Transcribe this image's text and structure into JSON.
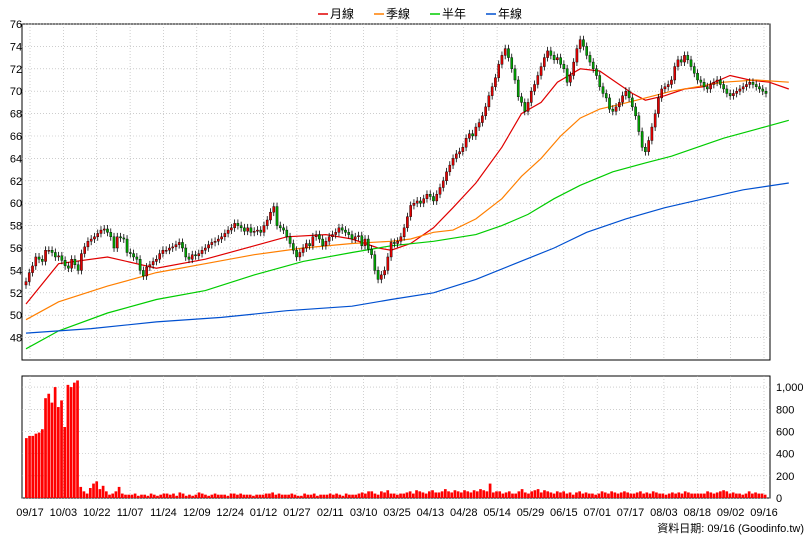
{
  "chart_data": {
    "type": "candlestick",
    "legend": [
      {
        "name": "月線",
        "color": "#e00000"
      },
      {
        "name": "季線",
        "color": "#ff7f00"
      },
      {
        "name": "半年",
        "color": "#00cc00"
      },
      {
        "name": "年線",
        "color": "#0050d0"
      }
    ],
    "price_axis": {
      "min": 46,
      "max": 76,
      "ticks": [
        48,
        50,
        52,
        54,
        56,
        58,
        60,
        62,
        64,
        66,
        68,
        70,
        72,
        74,
        76
      ]
    },
    "volume_axis": {
      "min": 0,
      "max": 1100,
      "ticks": [
        0,
        200,
        400,
        600,
        800,
        "1,000"
      ]
    },
    "x_labels": [
      "09/17",
      "10/03",
      "10/22",
      "11/07",
      "11/24",
      "12/09",
      "12/24",
      "01/12",
      "01/27",
      "02/11",
      "03/10",
      "03/25",
      "04/13",
      "04/28",
      "05/14",
      "05/29",
      "06/15",
      "07/01",
      "07/17",
      "08/03",
      "08/18",
      "09/02",
      "09/16"
    ],
    "closes": [
      53.0,
      53.8,
      54.4,
      55.2,
      55.0,
      54.8,
      55.8,
      55.8,
      55.6,
      55.2,
      55.3,
      54.9,
      54.4,
      54.2,
      55.0,
      54.5,
      54.0,
      55.5,
      56.1,
      56.6,
      56.8,
      57.0,
      57.3,
      57.6,
      57.7,
      57.4,
      57.0,
      56.0,
      57.0,
      56.9,
      56.8,
      55.6,
      55.5,
      55.2,
      55.0,
      54.0,
      53.5,
      54.3,
      54.5,
      54.8,
      55.0,
      55.5,
      55.8,
      55.8,
      56.0,
      56.1,
      56.3,
      56.5,
      56.0,
      55.2,
      55.0,
      55.4,
      55.3,
      55.5,
      55.8,
      56.0,
      56.3,
      56.5,
      56.6,
      56.8,
      57.0,
      57.3,
      57.6,
      57.8,
      58.2,
      58.0,
      57.8,
      57.5,
      57.8,
      57.4,
      57.5,
      57.6,
      57.4,
      58.0,
      58.5,
      59.2,
      59.7,
      58.0,
      57.8,
      57.6,
      57.0,
      56.4,
      55.8,
      55.2,
      55.6,
      56.0,
      56.4,
      56.2,
      57.0,
      57.2,
      56.8,
      56.2,
      56.6,
      57.0,
      57.2,
      57.4,
      57.8,
      57.6,
      57.4,
      57.2,
      56.8,
      57.0,
      57.1,
      56.2,
      56.8,
      55.9,
      55.4,
      54.0,
      53.2,
      53.6,
      54.0,
      55.2,
      56.5,
      56.4,
      56.6,
      57.0,
      57.8,
      58.8,
      59.8,
      60.0,
      60.2,
      60.0,
      60.4,
      60.8,
      60.6,
      60.2,
      60.8,
      61.4,
      62.0,
      62.8,
      63.4,
      64.0,
      64.4,
      64.6,
      65.0,
      65.8,
      66.2,
      66.0,
      66.8,
      67.2,
      67.8,
      68.6,
      69.6,
      70.4,
      71.2,
      72.4,
      73.2,
      73.8,
      73.0,
      72.0,
      71.0,
      69.5,
      69.0,
      68.2,
      69.0,
      70.0,
      70.6,
      71.4,
      72.2,
      73.0,
      73.6,
      73.2,
      72.8,
      73.0,
      72.4,
      72.0,
      70.8,
      71.4,
      72.6,
      73.8,
      74.6,
      74.0,
      73.2,
      72.6,
      72.0,
      71.4,
      70.4,
      69.8,
      69.4,
      68.4,
      68.2,
      68.6,
      69.0,
      69.6,
      70.0,
      69.4,
      68.6,
      67.8,
      66.4,
      65.0,
      64.6,
      65.6,
      66.8,
      68.0,
      69.4,
      70.2,
      70.4,
      70.6,
      71.0,
      72.2,
      72.8,
      72.6,
      73.2,
      72.8,
      72.2,
      71.6,
      71.0,
      70.8,
      70.4,
      70.2,
      70.6,
      70.8,
      71.0,
      70.6,
      70.2,
      69.8,
      69.6,
      69.8,
      70.0,
      70.2,
      70.4,
      70.6,
      70.8,
      70.6,
      70.4,
      70.2,
      70.0,
      69.8
    ],
    "ma": {
      "月線": [
        [
          0,
          51.0
        ],
        [
          10,
          54.6
        ],
        [
          25,
          55.2
        ],
        [
          40,
          54.2
        ],
        [
          55,
          55.0
        ],
        [
          70,
          56.2
        ],
        [
          80,
          57.0
        ],
        [
          92,
          57.2
        ],
        [
          100,
          56.8
        ],
        [
          108,
          56.0
        ],
        [
          112,
          55.8
        ],
        [
          118,
          56.4
        ],
        [
          125,
          57.8
        ],
        [
          131,
          59.6
        ],
        [
          138,
          61.8
        ],
        [
          146,
          65.0
        ],
        [
          152,
          68.0
        ],
        [
          158,
          69.0
        ],
        [
          163,
          70.8
        ],
        [
          170,
          72.0
        ],
        [
          176,
          71.8
        ],
        [
          181,
          70.8
        ],
        [
          186,
          69.8
        ],
        [
          190,
          69.2
        ],
        [
          196,
          69.6
        ],
        [
          202,
          70.2
        ],
        [
          208,
          70.4
        ],
        [
          216,
          71.4
        ],
        [
          222,
          71.0
        ],
        [
          228,
          70.8
        ],
        [
          234,
          70.2
        ]
      ],
      "季線": [
        [
          0,
          49.6
        ],
        [
          10,
          51.2
        ],
        [
          25,
          52.6
        ],
        [
          40,
          53.8
        ],
        [
          55,
          54.6
        ],
        [
          70,
          55.4
        ],
        [
          85,
          56.0
        ],
        [
          100,
          56.4
        ],
        [
          112,
          56.6
        ],
        [
          118,
          56.8
        ],
        [
          125,
          57.4
        ],
        [
          131,
          57.6
        ],
        [
          138,
          58.6
        ],
        [
          146,
          60.4
        ],
        [
          152,
          62.4
        ],
        [
          158,
          64.0
        ],
        [
          164,
          66.0
        ],
        [
          170,
          67.6
        ],
        [
          176,
          68.4
        ],
        [
          182,
          68.8
        ],
        [
          190,
          69.4
        ],
        [
          198,
          70.0
        ],
        [
          206,
          70.4
        ],
        [
          214,
          70.8
        ],
        [
          224,
          71.0
        ],
        [
          234,
          70.8
        ]
      ],
      "半年": [
        [
          0,
          47.0
        ],
        [
          10,
          48.6
        ],
        [
          25,
          50.2
        ],
        [
          40,
          51.4
        ],
        [
          55,
          52.2
        ],
        [
          70,
          53.6
        ],
        [
          85,
          54.8
        ],
        [
          100,
          55.6
        ],
        [
          112,
          56.2
        ],
        [
          125,
          56.6
        ],
        [
          138,
          57.2
        ],
        [
          146,
          58.0
        ],
        [
          154,
          59.0
        ],
        [
          162,
          60.4
        ],
        [
          170,
          61.6
        ],
        [
          180,
          62.8
        ],
        [
          190,
          63.6
        ],
        [
          198,
          64.2
        ],
        [
          206,
          65.0
        ],
        [
          214,
          65.8
        ],
        [
          224,
          66.6
        ],
        [
          234,
          67.4
        ]
      ],
      "年線": [
        [
          0,
          48.4
        ],
        [
          20,
          48.8
        ],
        [
          40,
          49.4
        ],
        [
          60,
          49.8
        ],
        [
          80,
          50.4
        ],
        [
          100,
          50.8
        ],
        [
          112,
          51.4
        ],
        [
          125,
          52.0
        ],
        [
          138,
          53.2
        ],
        [
          150,
          54.6
        ],
        [
          162,
          56.0
        ],
        [
          172,
          57.4
        ],
        [
          184,
          58.6
        ],
        [
          196,
          59.6
        ],
        [
          208,
          60.4
        ],
        [
          220,
          61.2
        ],
        [
          234,
          61.8
        ]
      ]
    },
    "volume": [
      540,
      560,
      560,
      580,
      590,
      620,
      900,
      940,
      860,
      1000,
      820,
      880,
      640,
      1020,
      1000,
      1040,
      1060,
      100,
      60,
      40,
      90,
      130,
      150,
      80,
      110,
      60,
      30,
      40,
      60,
      100,
      40,
      30,
      30,
      30,
      40,
      20,
      30,
      30,
      20,
      40,
      30,
      20,
      30,
      40,
      40,
      30,
      40,
      20,
      50,
      40,
      20,
      30,
      20,
      30,
      50,
      40,
      30,
      20,
      30,
      40,
      30,
      30,
      30,
      20,
      40,
      40,
      30,
      40,
      30,
      30,
      30,
      20,
      30,
      30,
      30,
      40,
      40,
      50,
      30,
      40,
      30,
      30,
      30,
      40,
      30,
      20,
      20,
      40,
      30,
      30,
      40,
      20,
      30,
      30,
      30,
      40,
      30,
      40,
      30,
      20,
      40,
      30,
      30,
      30,
      40,
      50,
      40,
      60,
      60,
      40,
      30,
      60,
      50,
      70,
      40,
      40,
      30,
      40,
      40,
      50,
      60,
      40,
      70,
      60,
      50,
      40,
      60,
      70,
      50,
      50,
      60,
      80,
      60,
      50,
      70,
      60,
      50,
      70,
      60,
      50,
      70,
      60,
      80,
      70,
      60,
      130,
      50,
      60,
      60,
      40,
      50,
      60,
      40,
      40,
      60,
      80,
      50,
      40,
      60,
      70,
      80,
      50,
      70,
      60,
      50,
      40,
      60,
      50,
      60,
      40,
      50,
      30,
      50,
      60,
      40,
      50,
      40,
      40,
      30,
      40,
      60,
      50,
      40,
      60,
      50,
      40,
      50,
      60,
      50,
      40,
      40,
      50,
      60,
      40,
      50,
      40,
      60,
      50,
      40,
      40,
      30,
      40,
      50,
      40,
      50,
      40,
      60,
      50,
      40,
      40,
      40,
      40,
      40,
      60,
      50,
      40,
      50,
      60,
      70,
      60,
      40,
      50,
      40,
      40,
      30,
      40,
      60,
      40,
      50,
      40,
      40,
      30
    ]
  },
  "footer": {
    "source": "資料日期: 09/16  (Goodinfo.tw)"
  },
  "colors": {
    "up": "#e00000",
    "down": "#00a000",
    "grid": "#b0b0b0",
    "volume": "#ff0000"
  }
}
